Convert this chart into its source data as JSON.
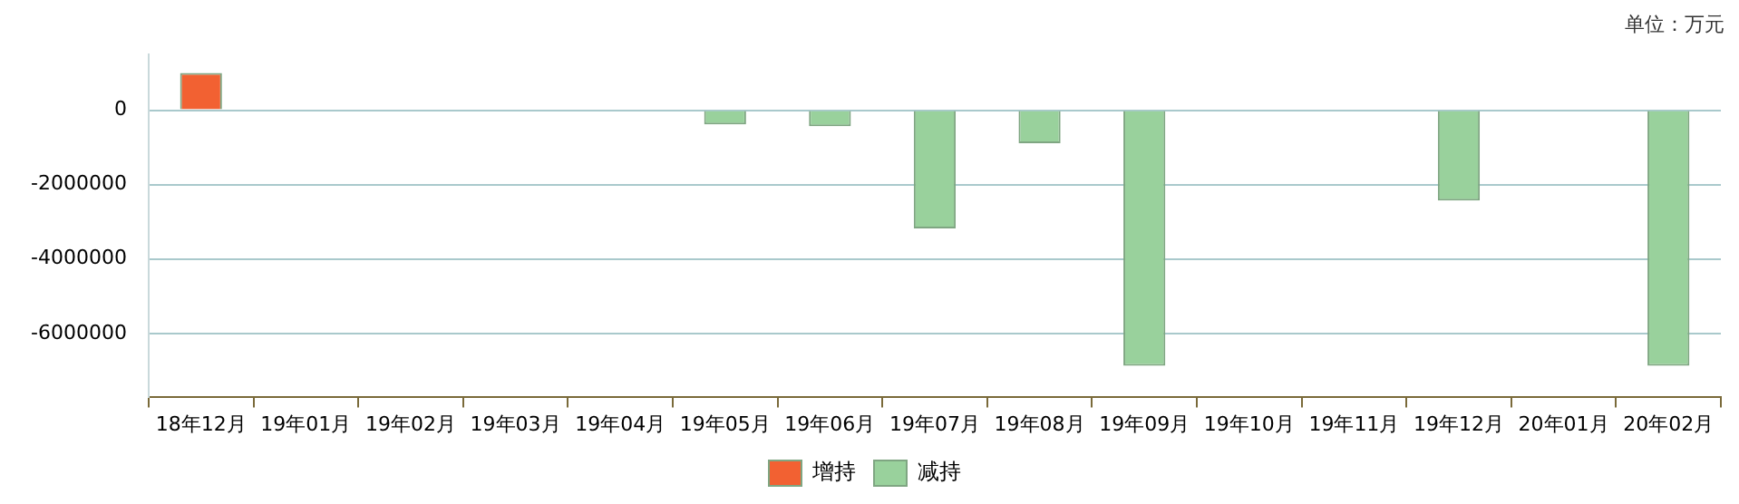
{
  "chart_data": {
    "type": "bar",
    "stacked": true,
    "annotations": [
      "单位：万元"
    ],
    "categories": [
      "18年12月",
      "19年01月",
      "19年02月",
      "19年03月",
      "19年04月",
      "19年05月",
      "19年06月",
      "19年07月",
      "19年08月",
      "19年09月",
      "19年10月",
      "19年11月",
      "19年12月",
      "20年01月",
      "20年02月"
    ],
    "series": [
      {
        "name": "增持",
        "color": "#f26132",
        "values": [
          1000000,
          null,
          null,
          null,
          null,
          null,
          null,
          null,
          null,
          null,
          null,
          null,
          null,
          null,
          null
        ]
      },
      {
        "name": "减持",
        "color": "#99d19c",
        "values": [
          null,
          null,
          null,
          null,
          null,
          -380000,
          -430000,
          -3180000,
          -890000,
          -6870000,
          null,
          null,
          -2430000,
          null,
          -6870000
        ]
      }
    ],
    "ylim": [
      -7700000,
      1500000
    ],
    "yticks": [
      0,
      -2000000,
      -4000000,
      -6000000
    ],
    "grid": "y",
    "legend": "bottom"
  }
}
